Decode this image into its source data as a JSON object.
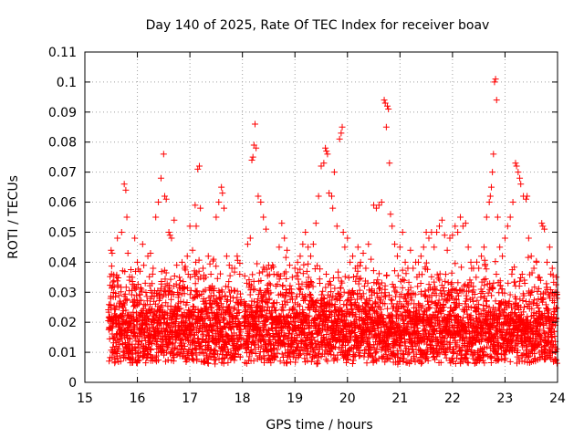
{
  "chart_data": {
    "type": "scatter",
    "title": "Day 140 of 2025, Rate Of TEC Index for receiver boav",
    "xlabel": "GPS time / hours",
    "ylabel": "ROTI / TECUs",
    "xlim": [
      15,
      24
    ],
    "ylim": [
      0,
      0.11
    ],
    "grid": true,
    "marker": "+",
    "color": "#ff0000",
    "x_ticks": [
      15,
      16,
      17,
      18,
      19,
      20,
      21,
      22,
      23,
      24
    ],
    "x_tick_labels": [
      "15",
      "16",
      "17",
      "18",
      "19",
      "20",
      "21",
      "22",
      "23",
      "24"
    ],
    "y_ticks": [
      0,
      0.01,
      0.02,
      0.03,
      0.04,
      0.05,
      0.06,
      0.07,
      0.08,
      0.09,
      0.1,
      0.11
    ],
    "y_tick_labels": [
      "0",
      "0.01",
      "0.02",
      "0.03",
      "0.04",
      "0.05",
      "0.06",
      "0.07",
      "0.08",
      "0.09",
      "0.1",
      "0.11"
    ],
    "series": [
      {
        "name": "ROTI",
        "points": [
          [
            15.5,
            0.044
          ],
          [
            15.52,
            0.043
          ],
          [
            15.55,
            0.02
          ],
          [
            15.6,
            0.022
          ],
          [
            15.62,
            0.048
          ],
          [
            15.7,
            0.05
          ],
          [
            15.75,
            0.066
          ],
          [
            15.78,
            0.064
          ],
          [
            15.8,
            0.055
          ],
          [
            15.82,
            0.043
          ],
          [
            15.85,
            0.034
          ],
          [
            15.9,
            0.035
          ],
          [
            15.95,
            0.048
          ],
          [
            16.0,
            0.04
          ],
          [
            16.05,
            0.037
          ],
          [
            16.1,
            0.046
          ],
          [
            16.15,
            0.033
          ],
          [
            16.2,
            0.042
          ],
          [
            16.25,
            0.043
          ],
          [
            16.3,
            0.038
          ],
          [
            16.35,
            0.055
          ],
          [
            16.4,
            0.06
          ],
          [
            16.45,
            0.068
          ],
          [
            16.5,
            0.076
          ],
          [
            16.52,
            0.062
          ],
          [
            16.55,
            0.061
          ],
          [
            16.6,
            0.05
          ],
          [
            16.62,
            0.049
          ],
          [
            16.65,
            0.048
          ],
          [
            16.7,
            0.054
          ],
          [
            16.75,
            0.039
          ],
          [
            16.8,
            0.035
          ],
          [
            16.85,
            0.04
          ],
          [
            16.9,
            0.038
          ],
          [
            16.95,
            0.042
          ],
          [
            17.0,
            0.052
          ],
          [
            17.05,
            0.044
          ],
          [
            17.1,
            0.059
          ],
          [
            17.12,
            0.052
          ],
          [
            17.15,
            0.071
          ],
          [
            17.18,
            0.072
          ],
          [
            17.2,
            0.058
          ],
          [
            17.25,
            0.038
          ],
          [
            17.3,
            0.035
          ],
          [
            17.35,
            0.042
          ],
          [
            17.4,
            0.036
          ],
          [
            17.45,
            0.041
          ],
          [
            17.5,
            0.055
          ],
          [
            17.55,
            0.06
          ],
          [
            17.6,
            0.065
          ],
          [
            17.62,
            0.063
          ],
          [
            17.65,
            0.058
          ],
          [
            17.7,
            0.042
          ],
          [
            17.75,
            0.039
          ],
          [
            17.8,
            0.038
          ],
          [
            17.85,
            0.038
          ],
          [
            17.9,
            0.042
          ],
          [
            17.95,
            0.036
          ],
          [
            18.1,
            0.046
          ],
          [
            18.15,
            0.048
          ],
          [
            18.18,
            0.074
          ],
          [
            18.2,
            0.075
          ],
          [
            18.22,
            0.079
          ],
          [
            18.24,
            0.086
          ],
          [
            18.26,
            0.078
          ],
          [
            18.3,
            0.062
          ],
          [
            18.35,
            0.06
          ],
          [
            18.4,
            0.055
          ],
          [
            18.45,
            0.051
          ],
          [
            18.5,
            0.039
          ],
          [
            18.55,
            0.038
          ],
          [
            18.6,
            0.036
          ],
          [
            18.7,
            0.045
          ],
          [
            18.75,
            0.053
          ],
          [
            18.8,
            0.048
          ],
          [
            18.85,
            0.044
          ],
          [
            18.9,
            0.039
          ],
          [
            18.95,
            0.035
          ],
          [
            19.0,
            0.038
          ],
          [
            19.05,
            0.04
          ],
          [
            19.1,
            0.042
          ],
          [
            19.15,
            0.046
          ],
          [
            19.2,
            0.05
          ],
          [
            19.25,
            0.045
          ],
          [
            19.3,
            0.042
          ],
          [
            19.35,
            0.046
          ],
          [
            19.4,
            0.053
          ],
          [
            19.45,
            0.062
          ],
          [
            19.5,
            0.072
          ],
          [
            19.55,
            0.073
          ],
          [
            19.58,
            0.078
          ],
          [
            19.6,
            0.077
          ],
          [
            19.62,
            0.076
          ],
          [
            19.65,
            0.063
          ],
          [
            19.7,
            0.062
          ],
          [
            19.72,
            0.058
          ],
          [
            19.75,
            0.07
          ],
          [
            19.8,
            0.052
          ],
          [
            19.85,
            0.081
          ],
          [
            19.88,
            0.083
          ],
          [
            19.9,
            0.085
          ],
          [
            19.92,
            0.05
          ],
          [
            19.95,
            0.045
          ],
          [
            20.0,
            0.048
          ],
          [
            20.05,
            0.04
          ],
          [
            20.1,
            0.042
          ],
          [
            20.15,
            0.038
          ],
          [
            20.2,
            0.045
          ],
          [
            20.25,
            0.04
          ],
          [
            20.3,
            0.043
          ],
          [
            20.35,
            0.038
          ],
          [
            20.4,
            0.046
          ],
          [
            20.45,
            0.041
          ],
          [
            20.5,
            0.059
          ],
          [
            20.55,
            0.058
          ],
          [
            20.6,
            0.059
          ],
          [
            20.65,
            0.06
          ],
          [
            20.7,
            0.094
          ],
          [
            20.72,
            0.093
          ],
          [
            20.74,
            0.085
          ],
          [
            20.76,
            0.092
          ],
          [
            20.78,
            0.091
          ],
          [
            20.8,
            0.073
          ],
          [
            20.82,
            0.056
          ],
          [
            20.85,
            0.052
          ],
          [
            20.9,
            0.046
          ],
          [
            20.95,
            0.042
          ],
          [
            21.0,
            0.045
          ],
          [
            21.05,
            0.05
          ],
          [
            21.1,
            0.04
          ],
          [
            21.15,
            0.038
          ],
          [
            21.2,
            0.044
          ],
          [
            21.25,
            0.038
          ],
          [
            21.3,
            0.04
          ],
          [
            21.35,
            0.04
          ],
          [
            21.4,
            0.042
          ],
          [
            21.45,
            0.045
          ],
          [
            21.5,
            0.05
          ],
          [
            21.55,
            0.048
          ],
          [
            21.6,
            0.05
          ],
          [
            21.65,
            0.045
          ],
          [
            21.7,
            0.05
          ],
          [
            21.75,
            0.052
          ],
          [
            21.8,
            0.054
          ],
          [
            21.85,
            0.049
          ],
          [
            21.9,
            0.044
          ],
          [
            21.95,
            0.048
          ],
          [
            22.0,
            0.049
          ],
          [
            22.05,
            0.052
          ],
          [
            22.1,
            0.05
          ],
          [
            22.15,
            0.055
          ],
          [
            22.2,
            0.052
          ],
          [
            22.25,
            0.053
          ],
          [
            22.3,
            0.045
          ],
          [
            22.35,
            0.04
          ],
          [
            22.4,
            0.038
          ],
          [
            22.45,
            0.035
          ],
          [
            22.5,
            0.038
          ],
          [
            22.55,
            0.042
          ],
          [
            22.6,
            0.045
          ],
          [
            22.65,
            0.055
          ],
          [
            22.7,
            0.06
          ],
          [
            22.72,
            0.062
          ],
          [
            22.74,
            0.065
          ],
          [
            22.76,
            0.07
          ],
          [
            22.78,
            0.076
          ],
          [
            22.8,
            0.1
          ],
          [
            22.82,
            0.101
          ],
          [
            22.84,
            0.094
          ],
          [
            22.86,
            0.055
          ],
          [
            22.9,
            0.045
          ],
          [
            22.95,
            0.042
          ],
          [
            23.0,
            0.048
          ],
          [
            23.05,
            0.052
          ],
          [
            23.1,
            0.055
          ],
          [
            23.15,
            0.06
          ],
          [
            23.2,
            0.073
          ],
          [
            23.22,
            0.072
          ],
          [
            23.25,
            0.07
          ],
          [
            23.28,
            0.068
          ],
          [
            23.3,
            0.066
          ],
          [
            23.35,
            0.062
          ],
          [
            23.4,
            0.061
          ],
          [
            23.42,
            0.062
          ],
          [
            23.45,
            0.048
          ],
          [
            23.5,
            0.042
          ],
          [
            23.55,
            0.038
          ],
          [
            23.6,
            0.04
          ],
          [
            23.65,
            0.035
          ],
          [
            23.7,
            0.053
          ],
          [
            23.72,
            0.052
          ],
          [
            23.75,
            0.051
          ],
          [
            23.8,
            0.04
          ],
          [
            23.85,
            0.045
          ],
          [
            23.9,
            0.038
          ],
          [
            23.95,
            0.03
          ],
          [
            23.98,
            0.03
          ]
        ]
      }
    ],
    "dense_band": {
      "x_range": [
        15.45,
        23.99
      ],
      "y_base_range": [
        0.005,
        0.03
      ],
      "seed": 140
    }
  }
}
